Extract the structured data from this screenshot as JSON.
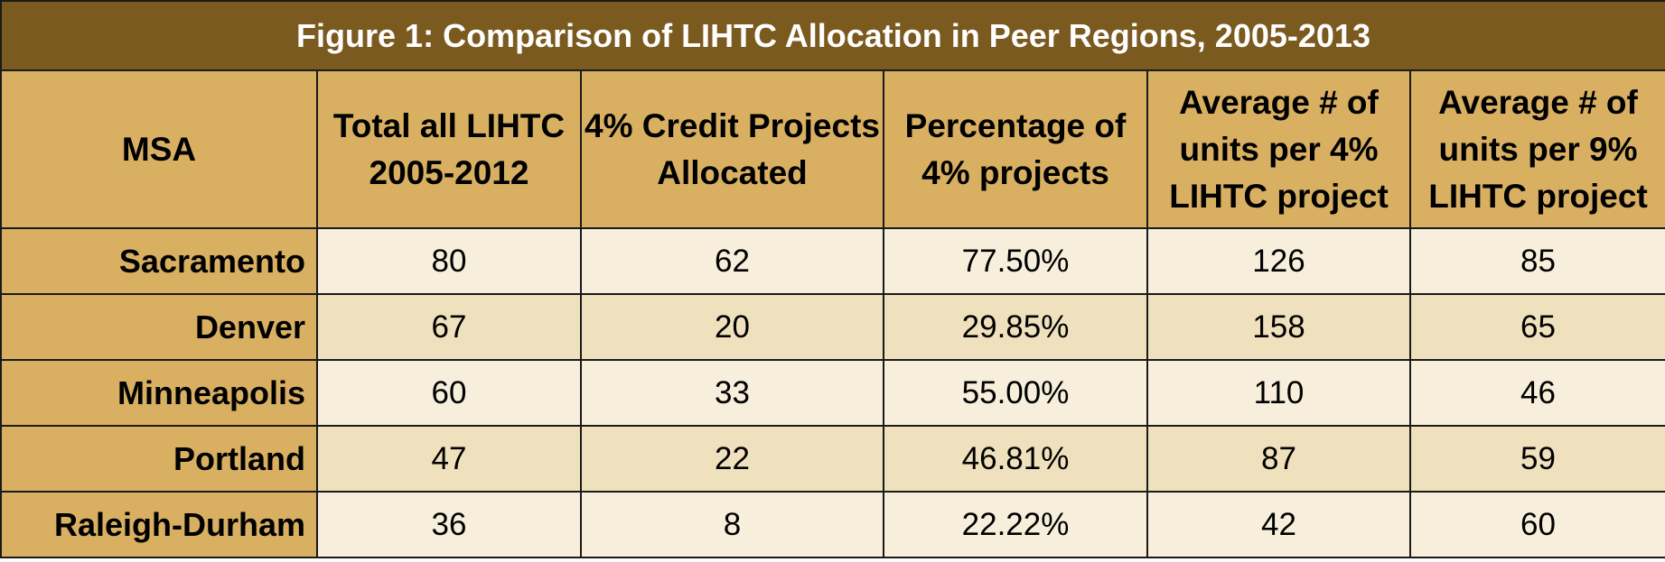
{
  "chart_data": {
    "type": "table",
    "title": "Figure 1: Comparison of LIHTC Allocation in Peer Regions, 2005-2013",
    "columns": [
      "MSA",
      "Total all LIHTC 2005-2012",
      "4% Credit Projects Allocated",
      "Percentage of 4% projects",
      "Average # of units per 4% LIHTC project",
      "Average # of units per 9% LIHTC project"
    ],
    "rows": [
      [
        "Sacramento",
        "80",
        "62",
        "77.50%",
        "126",
        "85"
      ],
      [
        "Denver",
        "67",
        "20",
        "29.85%",
        "158",
        "65"
      ],
      [
        "Minneapolis",
        "60",
        "33",
        "55.00%",
        "110",
        "46"
      ],
      [
        "Portland",
        "47",
        "22",
        "46.81%",
        "87",
        "59"
      ],
      [
        "Raleigh-Durham",
        "36",
        "8",
        "22.22%",
        "42",
        "60"
      ]
    ]
  },
  "colors": {
    "title_bg": "#7a5a1f",
    "header_bg": "#d9b062",
    "row_light": "#f7efdc",
    "row_dark": "#efe1bd"
  }
}
